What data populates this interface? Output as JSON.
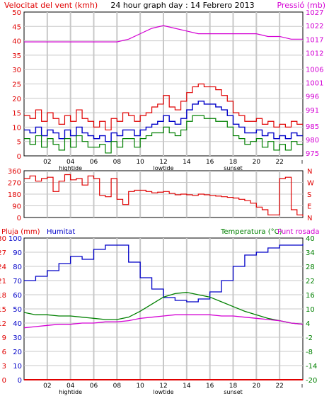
{
  "colors": {
    "background": "#ffffff",
    "frame": "#000000",
    "grid": "#c8c8c8",
    "wind": "#e00000",
    "wind_avg": "#0000c8",
    "wind_min": "#008000",
    "pressure": "#d400d4",
    "direction": "#e00000",
    "rain": "#e00000",
    "humidity": "#0000c8",
    "temperature": "#008000",
    "dewpoint": "#d400d4"
  },
  "header": {
    "left_label": "Velocitat del vent (kmh)",
    "title": "24 hour graph day : 14 Febrero 2013",
    "right_label": "Pressió (mb)"
  },
  "time_axis": {
    "hour_ticks": [
      "02",
      "04",
      "06",
      "08",
      "10",
      "12",
      "14",
      "16",
      "18",
      "20",
      "22"
    ],
    "tide_labels": [
      {
        "text": "hightide",
        "hour": 4
      },
      {
        "text": "lowtide",
        "hour": 12
      },
      {
        "text": "sunset",
        "hour": 18
      }
    ]
  },
  "bottom_labels": {
    "rain": "Pluja (mm)",
    "humidity": "Humitat",
    "temperature": "Temperatura (°C)",
    "dewpoint": "Punt rosada"
  },
  "chart_data": [
    {
      "type": "line",
      "panel": "wind-pressure",
      "x_unit": "hour",
      "xlim": [
        0,
        24
      ],
      "ylim": [
        0,
        50
      ],
      "yticks": [
        0,
        5,
        10,
        15,
        20,
        25,
        30,
        35,
        40,
        45,
        50
      ],
      "y2lim": [
        974,
        1027
      ],
      "y2ticks": [
        975,
        980,
        985,
        991,
        996,
        1001,
        1006,
        1012,
        1017,
        1022,
        1027
      ],
      "series": [
        {
          "key": "gust",
          "x": [
            0,
            0.5,
            1,
            1.5,
            2,
            2.5,
            3,
            3.5,
            4,
            4.5,
            5,
            5.5,
            6,
            6.5,
            7,
            7.5,
            8,
            8.5,
            9,
            9.5,
            10,
            10.5,
            11,
            11.5,
            12,
            12.5,
            13,
            13.5,
            14,
            14.5,
            15,
            15.5,
            16,
            16.5,
            17,
            17.5,
            18,
            18.5,
            19,
            19.5,
            20,
            20.5,
            21,
            21.5,
            22,
            22.5,
            23,
            23.5,
            24
          ],
          "y": [
            14,
            13,
            16,
            12,
            15,
            13,
            11,
            14,
            12,
            16,
            13,
            12,
            10,
            12,
            9,
            13,
            12,
            15,
            14,
            12,
            14,
            15,
            17,
            18,
            21,
            17,
            16,
            19,
            22,
            24,
            25,
            24,
            24,
            23,
            21,
            19,
            15,
            14,
            12,
            12,
            13,
            11,
            12,
            10,
            11,
            10,
            12,
            11,
            11
          ]
        },
        {
          "key": "average",
          "x": [
            0,
            0.5,
            1,
            1.5,
            2,
            2.5,
            3,
            3.5,
            4,
            4.5,
            5,
            5.5,
            6,
            6.5,
            7,
            7.5,
            8,
            8.5,
            9,
            9.5,
            10,
            10.5,
            11,
            11.5,
            12,
            12.5,
            13,
            13.5,
            14,
            14.5,
            15,
            15.5,
            16,
            16.5,
            17,
            17.5,
            18,
            18.5,
            19,
            19.5,
            20,
            20.5,
            21,
            21.5,
            22,
            22.5,
            23,
            23.5,
            24
          ],
          "y": [
            9,
            8,
            10,
            7,
            9,
            8,
            6,
            9,
            7,
            10,
            8,
            7,
            6,
            7,
            5,
            8,
            7,
            9,
            9,
            7,
            9,
            10,
            11,
            12,
            14,
            12,
            11,
            13,
            16,
            18,
            19,
            18,
            18,
            17,
            16,
            14,
            11,
            10,
            8,
            8,
            9,
            7,
            8,
            6,
            7,
            6,
            8,
            7,
            7
          ]
        },
        {
          "key": "minimum",
          "x": [
            0,
            0.5,
            1,
            1.5,
            2,
            2.5,
            3,
            3.5,
            4,
            4.5,
            5,
            5.5,
            6,
            6.5,
            7,
            7.5,
            8,
            8.5,
            9,
            9.5,
            10,
            10.5,
            11,
            11.5,
            12,
            12.5,
            13,
            13.5,
            14,
            14.5,
            15,
            15.5,
            16,
            16.5,
            17,
            17.5,
            18,
            18.5,
            19,
            19.5,
            20,
            20.5,
            21,
            21.5,
            22,
            22.5,
            23,
            23.5,
            24
          ],
          "y": [
            6,
            4,
            7,
            3,
            6,
            4,
            2,
            6,
            3,
            7,
            5,
            3,
            3,
            4,
            1,
            5,
            3,
            6,
            6,
            3,
            6,
            7,
            8,
            8,
            10,
            8,
            7,
            9,
            12,
            14,
            14,
            13,
            13,
            12,
            12,
            10,
            7,
            6,
            4,
            5,
            6,
            3,
            5,
            2,
            4,
            2,
            5,
            4,
            4
          ]
        },
        {
          "key": "pressure",
          "axis": "y2",
          "x": [
            0,
            1,
            2,
            3,
            4,
            5,
            6,
            7,
            8,
            9,
            10,
            11,
            12,
            13,
            14,
            15,
            16,
            17,
            18,
            19,
            20,
            21,
            22,
            23,
            24
          ],
          "y": [
            1016,
            1016,
            1016,
            1016,
            1016,
            1016,
            1016,
            1016,
            1016,
            1017,
            1019,
            1021,
            1022,
            1021,
            1020,
            1019,
            1019,
            1019,
            1019,
            1019,
            1019,
            1018,
            1018,
            1017,
            1017
          ]
        }
      ]
    },
    {
      "type": "line",
      "panel": "wind-direction",
      "x_unit": "hour",
      "xlim": [
        0,
        24
      ],
      "ylim": [
        0,
        360
      ],
      "yticks": [
        0,
        90,
        180,
        270,
        360
      ],
      "compass_labels": [
        "N",
        "W",
        "S",
        "E",
        "N"
      ],
      "series": [
        {
          "key": "direction",
          "x": [
            0,
            0.5,
            1,
            1.5,
            2,
            2.5,
            3,
            3.5,
            4,
            4.5,
            5,
            5.5,
            6,
            6.5,
            7,
            7.5,
            8,
            8.5,
            9,
            9.5,
            10,
            10.5,
            11,
            11.5,
            12,
            12.5,
            13,
            13.5,
            14,
            14.5,
            15,
            15.5,
            16,
            16.5,
            17,
            17.5,
            18,
            18.5,
            19,
            19.5,
            20,
            20.5,
            21,
            21.5,
            22,
            22.5,
            23,
            23.5,
            24
          ],
          "y": [
            300,
            320,
            280,
            300,
            310,
            200,
            280,
            330,
            290,
            300,
            250,
            320,
            300,
            170,
            160,
            300,
            140,
            100,
            200,
            210,
            210,
            200,
            190,
            195,
            200,
            185,
            175,
            180,
            175,
            170,
            180,
            175,
            170,
            165,
            160,
            155,
            150,
            140,
            130,
            110,
            80,
            60,
            20,
            20,
            300,
            310,
            60,
            20,
            10
          ]
        }
      ]
    },
    {
      "type": "line",
      "panel": "rain-humidity-temperature",
      "x_unit": "hour",
      "xlim": [
        0,
        24
      ],
      "ylim": [
        0,
        30
      ],
      "yticks": [
        0,
        3,
        6,
        9,
        12,
        15,
        18,
        21,
        24,
        27,
        30
      ],
      "y_humidity_ticks": [
        0,
        10,
        20,
        30,
        40,
        50,
        60,
        70,
        80,
        90,
        100
      ],
      "y2lim": [
        -20,
        40
      ],
      "y2ticks": [
        -20,
        -14,
        -8,
        -2,
        4,
        10,
        16,
        22,
        28,
        34,
        40
      ],
      "series": [
        {
          "key": "rain",
          "x": [
            0,
            24
          ],
          "y": [
            0,
            0
          ]
        },
        {
          "key": "humidity",
          "x": [
            0,
            1,
            2,
            3,
            4,
            5,
            6,
            7,
            8,
            9,
            10,
            11,
            12,
            13,
            14,
            15,
            16,
            17,
            18,
            19,
            20,
            21,
            22,
            23,
            24
          ],
          "y": [
            70,
            73,
            77,
            82,
            87,
            85,
            92,
            95,
            95,
            83,
            72,
            64,
            58,
            56,
            55,
            57,
            62,
            70,
            80,
            88,
            90,
            93,
            95,
            95,
            96
          ]
        },
        {
          "key": "temperature",
          "axis": "y2",
          "x": [
            0,
            1,
            2,
            3,
            4,
            5,
            6,
            7,
            8,
            9,
            10,
            11,
            12,
            13,
            14,
            15,
            16,
            17,
            18,
            19,
            20,
            21,
            22,
            23,
            24
          ],
          "y": [
            8.5,
            7.5,
            7.5,
            7.0,
            7.0,
            6.5,
            6.0,
            5.5,
            5.5,
            6.5,
            9,
            12,
            15,
            16.5,
            17,
            16,
            15,
            13,
            11,
            9,
            7.5,
            6,
            5,
            4,
            3.5
          ]
        },
        {
          "key": "dewpoint",
          "axis": "y2",
          "x": [
            0,
            1,
            2,
            3,
            4,
            5,
            6,
            7,
            8,
            9,
            10,
            11,
            12,
            13,
            14,
            15,
            16,
            17,
            18,
            19,
            20,
            21,
            22,
            23,
            24
          ],
          "y": [
            2,
            2.5,
            3,
            3.5,
            3.5,
            4,
            4,
            4.5,
            4.5,
            5,
            6,
            6.5,
            7,
            7.5,
            7.5,
            7.5,
            7.5,
            7,
            7,
            6.5,
            6,
            5.5,
            5,
            4,
            3.5
          ]
        }
      ]
    }
  ]
}
